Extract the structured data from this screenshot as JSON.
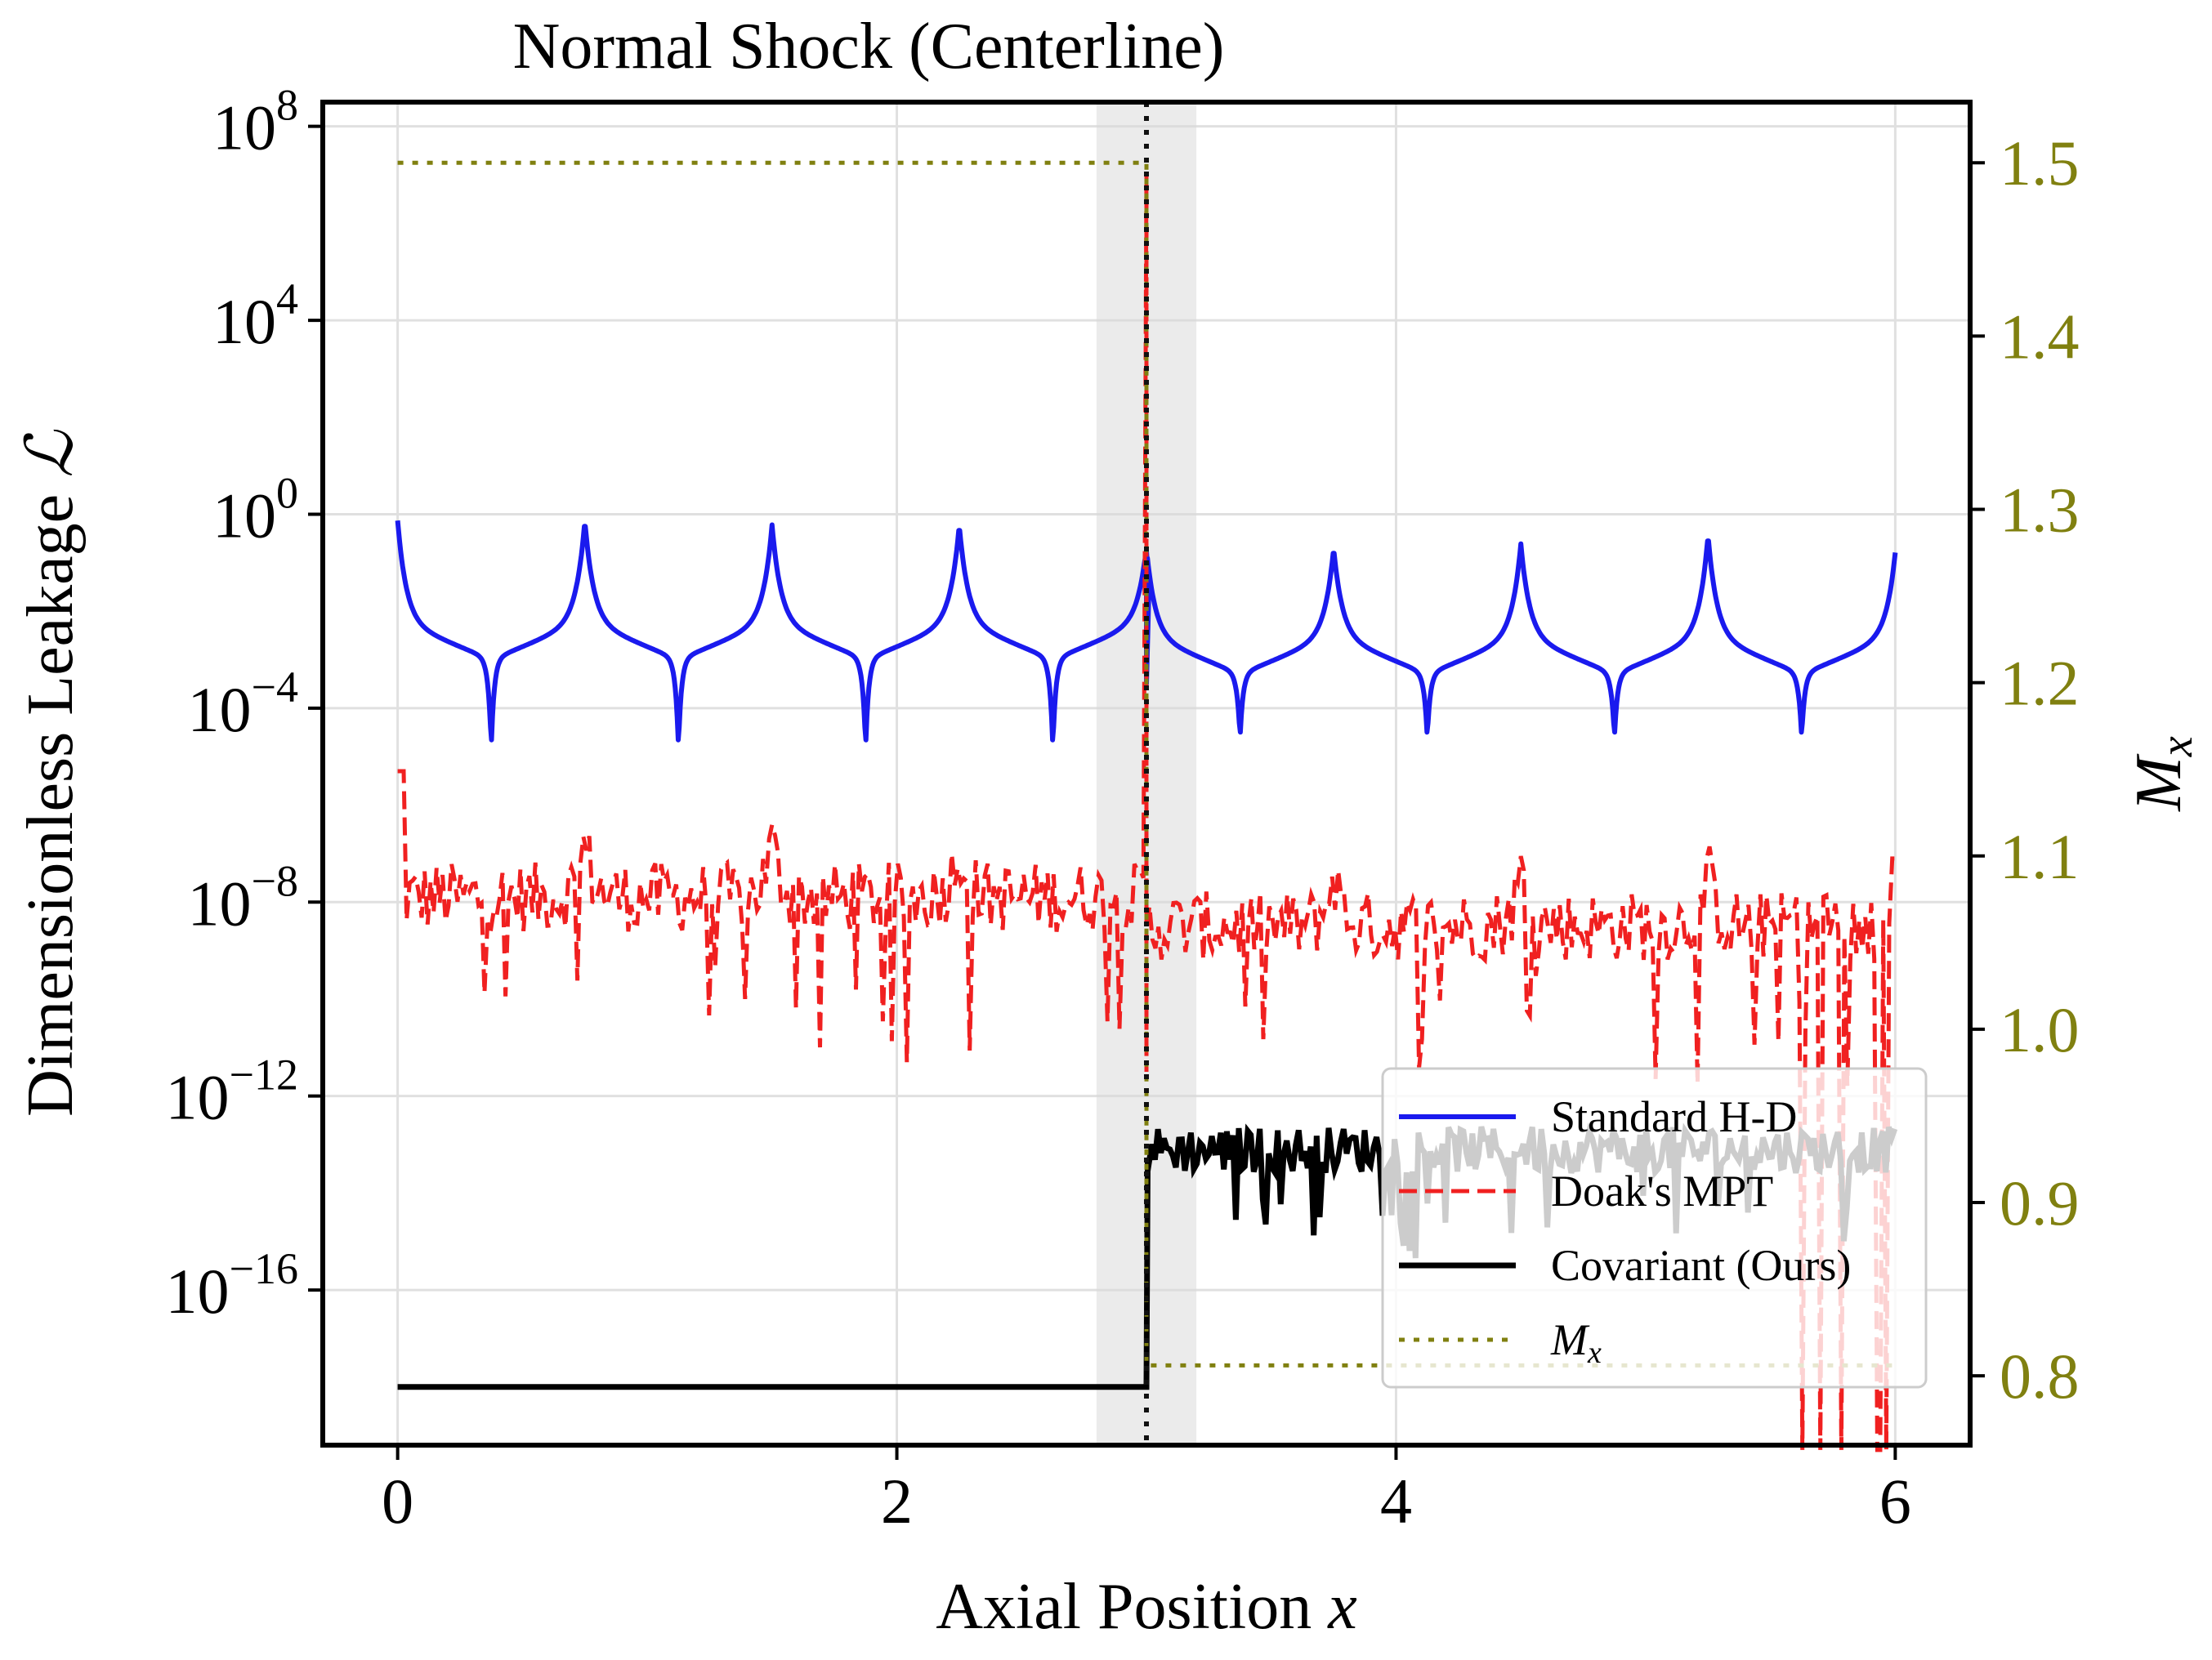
{
  "chart_data": {
    "type": "line",
    "title": "Normal Shock (Centerline)",
    "xlabel": "Axial Position",
    "xlabel_var": "x",
    "ylabel": "Dimensionless Leakage",
    "ylabel_var": "ℒ",
    "y2label_var": "M",
    "y2label_sub": "x",
    "xlim": [
      -0.3,
      6.3
    ],
    "ylim_log10": [
      -19.2,
      8.5
    ],
    "y2lim": [
      0.76,
      1.535
    ],
    "yscale": "log",
    "grid": true,
    "legend_position": "lower right",
    "x_ticks": [
      0,
      2,
      4,
      6
    ],
    "x_tick_labels": [
      "0",
      "2",
      "4",
      "6"
    ],
    "y_ticks_log10": [
      8,
      4,
      0,
      -4,
      -8,
      -12,
      -16
    ],
    "y_tick_base": "10",
    "y_tick_exponents": [
      "8",
      "4",
      "0",
      "−4",
      "−8",
      "−12",
      "−16"
    ],
    "y2_ticks": [
      1.5,
      1.4,
      1.3,
      1.2,
      1.1,
      1.0,
      0.9,
      0.8
    ],
    "y2_tick_labels": [
      "1.5",
      "1.4",
      "1.3",
      "1.2",
      "1.1",
      "1.0",
      "0.9",
      "0.8"
    ],
    "shock_position": 3.0,
    "shock_band": [
      2.8,
      3.2
    ],
    "series": [
      {
        "name": "Standard H-D",
        "color": "#1a1aee",
        "style": "solid",
        "axis": "left",
        "description": "log-cusp oscillation",
        "upstream": {
          "x_range": [
            0,
            3
          ],
          "period": 0.75,
          "peak_log10": 0.0,
          "baseline_log10": -2.2,
          "dip_log10": -4.8,
          "dip_offset": 0.375
        },
        "downstream": {
          "x_range": [
            3,
            6
          ],
          "period": 0.75,
          "peak_log10": -0.6,
          "baseline_log10": -2.5,
          "dip_log10": -4.6,
          "dip_offset": 0.375
        },
        "peaks_x": [
          0,
          0.75,
          1.5,
          2.25,
          3.0,
          3.75,
          4.5,
          5.25,
          6.0
        ],
        "peaks_log10": [
          0.1,
          0.1,
          0.0,
          0.0,
          -0.5,
          -0.5,
          -0.4,
          -0.2,
          -0.6
        ]
      },
      {
        "name": "Doak's MPT",
        "color": "#f02020",
        "style": "dashed",
        "axis": "left",
        "description": "noisy",
        "start_log10": -5.3,
        "upstream_mean_log10": -7.9,
        "downstream_mean_log10": -8.5,
        "noise_log10": 0.9,
        "spike_at_shock_log10": 7.0,
        "end_log10": -7.1
      },
      {
        "name": "Covariant (Ours)",
        "color": "#000000",
        "style": "solid",
        "axis": "left",
        "upstream_log10": -18.0,
        "downstream_mean_log10": -13.3,
        "noise_log10": 0.6
      },
      {
        "name": "M",
        "name_sub": "x",
        "color": "#808010",
        "style": "dotted",
        "axis": "right",
        "x": [
          0,
          3,
          3,
          6
        ],
        "values": [
          1.5,
          1.5,
          0.806,
          0.806
        ]
      }
    ]
  }
}
